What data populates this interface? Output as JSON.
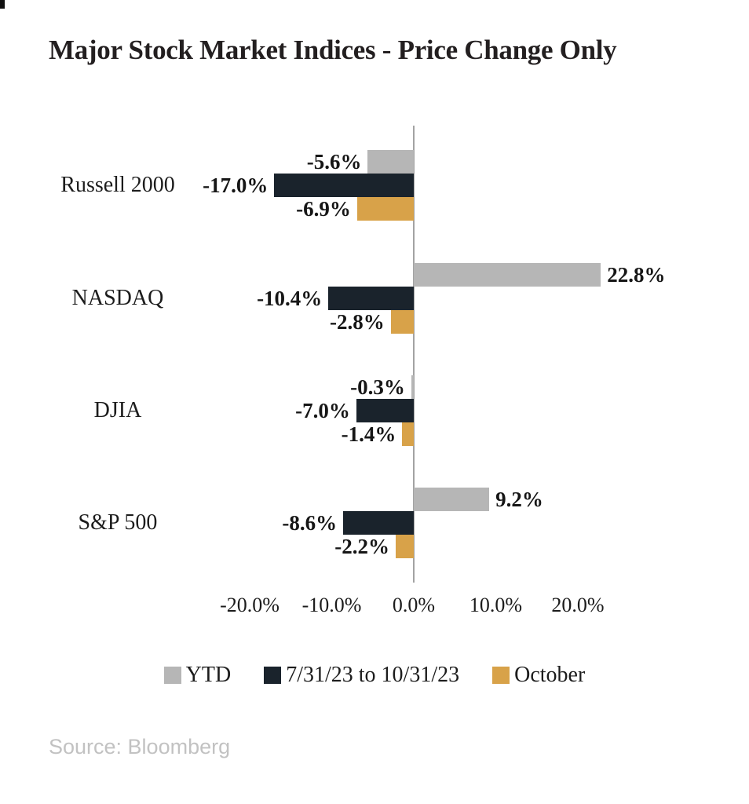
{
  "page": {
    "title": "Major Stock Market Indices - Price Change Only",
    "source": "Source: Bloomberg"
  },
  "chart_data": {
    "type": "bar",
    "orientation": "horizontal",
    "title": "Major Stock Market Indices - Price Change Only",
    "categories": [
      "Russell 2000",
      "NASDAQ",
      "DJIA",
      "S&P 500"
    ],
    "series": [
      {
        "name": "YTD",
        "color": "#b6b6b6",
        "values": [
          -5.6,
          22.8,
          -0.3,
          9.2
        ]
      },
      {
        "name": "7/31/23 to 10/31/23",
        "color": "#1a232c",
        "values": [
          -17.0,
          -10.4,
          -7.0,
          -8.6
        ]
      },
      {
        "name": "October",
        "color": "#d8a249",
        "values": [
          -6.9,
          -2.8,
          -1.4,
          -2.2
        ]
      }
    ],
    "data_label_suffix": "%",
    "data_label_decimals": 1,
    "x_ticks": [
      -20,
      -10,
      0,
      10,
      20
    ],
    "x_tick_labels": [
      "-20.0%",
      "-10.0%",
      "0.0%",
      "10.0%",
      "20.0%"
    ],
    "xlim": [
      -22,
      25
    ],
    "grid": false,
    "legend_position": "bottom",
    "axis_color": "#a3a3a3",
    "source": "Source: Bloomberg"
  }
}
